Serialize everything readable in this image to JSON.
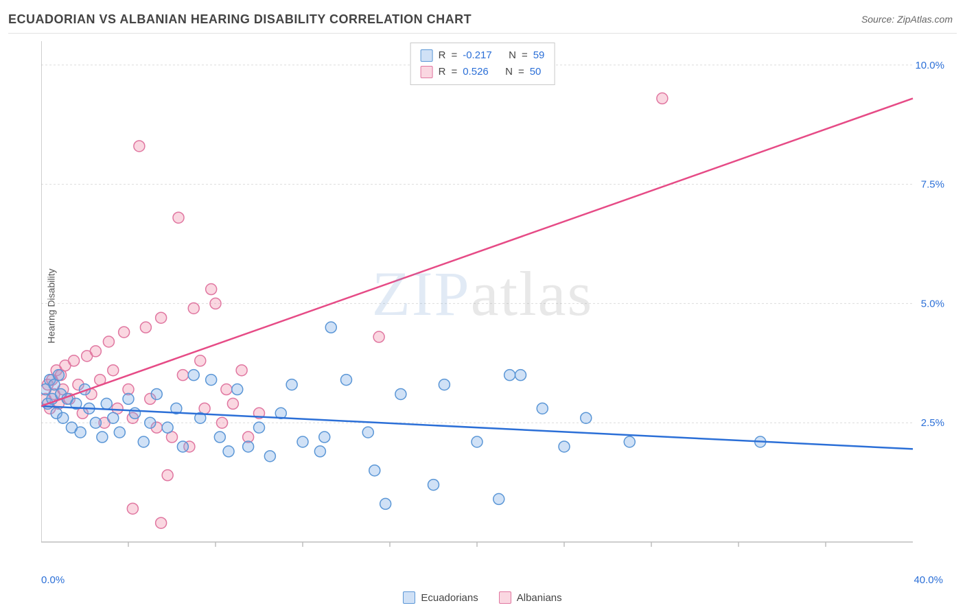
{
  "header": {
    "title": "ECUADORIAN VS ALBANIAN HEARING DISABILITY CORRELATION CHART",
    "source_prefix": "Source: ",
    "source_name": "ZipAtlas.com"
  },
  "ylabel": "Hearing Disability",
  "watermark": {
    "left": "ZIP",
    "right": "atlas"
  },
  "axis": {
    "xmin": 0.0,
    "xmax": 40.0,
    "ymin": 0.0,
    "ymax": 10.5,
    "xmin_label": "0.0%",
    "xmax_label": "40.0%",
    "yticks": [
      {
        "v": 2.5,
        "label": "2.5%"
      },
      {
        "v": 5.0,
        "label": "5.0%"
      },
      {
        "v": 7.5,
        "label": "7.5%"
      },
      {
        "v": 10.0,
        "label": "10.0%"
      }
    ],
    "xticks_minor": [
      4,
      8,
      12,
      16,
      20,
      24,
      28,
      32,
      36
    ]
  },
  "styling": {
    "background": "#ffffff",
    "grid_color": "#dcdcdc",
    "grid_dash": "3,3",
    "axis_line_color": "#bdbdbd",
    "tick_label_color": "#2b6fd7",
    "marker_radius": 8,
    "marker_stroke_width": 1.5,
    "trend_line_width": 2.5
  },
  "series": {
    "ecuadorians": {
      "label": "Ecuadorians",
      "fill": "rgba(120,170,230,0.35)",
      "stroke": "#5a96d6",
      "line_color": "#2b6fd7",
      "R": "-0.217",
      "N": "59",
      "trend": {
        "x0": 0,
        "y0": 2.85,
        "x1": 40,
        "y1": 1.95
      },
      "points": [
        [
          0.2,
          3.2
        ],
        [
          0.3,
          2.9
        ],
        [
          0.4,
          3.4
        ],
        [
          0.5,
          3.0
        ],
        [
          0.6,
          3.3
        ],
        [
          0.7,
          2.7
        ],
        [
          0.8,
          3.5
        ],
        [
          0.9,
          3.1
        ],
        [
          1.0,
          2.6
        ],
        [
          1.2,
          3.0
        ],
        [
          1.4,
          2.4
        ],
        [
          1.6,
          2.9
        ],
        [
          1.8,
          2.3
        ],
        [
          2.0,
          3.2
        ],
        [
          2.2,
          2.8
        ],
        [
          2.5,
          2.5
        ],
        [
          2.8,
          2.2
        ],
        [
          3.0,
          2.9
        ],
        [
          3.3,
          2.6
        ],
        [
          3.6,
          2.3
        ],
        [
          4.0,
          3.0
        ],
        [
          4.3,
          2.7
        ],
        [
          4.7,
          2.1
        ],
        [
          5.0,
          2.5
        ],
        [
          5.3,
          3.1
        ],
        [
          5.8,
          2.4
        ],
        [
          6.2,
          2.8
        ],
        [
          6.5,
          2.0
        ],
        [
          7.0,
          3.5
        ],
        [
          7.3,
          2.6
        ],
        [
          7.8,
          3.4
        ],
        [
          8.2,
          2.2
        ],
        [
          8.6,
          1.9
        ],
        [
          9.0,
          3.2
        ],
        [
          9.5,
          2.0
        ],
        [
          10.0,
          2.4
        ],
        [
          10.5,
          1.8
        ],
        [
          11.0,
          2.7
        ],
        [
          11.5,
          3.3
        ],
        [
          12.0,
          2.1
        ],
        [
          12.8,
          1.9
        ],
        [
          13.0,
          2.2
        ],
        [
          13.3,
          4.5
        ],
        [
          14.0,
          3.4
        ],
        [
          15.0,
          2.3
        ],
        [
          15.3,
          1.5
        ],
        [
          15.8,
          0.8
        ],
        [
          16.5,
          3.1
        ],
        [
          18.0,
          1.2
        ],
        [
          18.5,
          3.3
        ],
        [
          20.0,
          2.1
        ],
        [
          21.0,
          0.9
        ],
        [
          21.5,
          3.5
        ],
        [
          22.0,
          3.5
        ],
        [
          23.0,
          2.8
        ],
        [
          24.0,
          2.0
        ],
        [
          25.0,
          2.6
        ],
        [
          27.0,
          2.1
        ],
        [
          33.0,
          2.1
        ]
      ]
    },
    "albanians": {
      "label": "Albanians",
      "fill": "rgba(240,140,170,0.35)",
      "stroke": "#e076a0",
      "line_color": "#e64b86",
      "R": "0.526",
      "N": "50",
      "trend": {
        "x0": 0,
        "y0": 2.85,
        "x1": 40,
        "y1": 9.3
      },
      "points": [
        [
          0.2,
          3.0
        ],
        [
          0.3,
          3.3
        ],
        [
          0.4,
          2.8
        ],
        [
          0.5,
          3.4
        ],
        [
          0.6,
          3.1
        ],
        [
          0.7,
          3.6
        ],
        [
          0.8,
          2.9
        ],
        [
          0.9,
          3.5
        ],
        [
          1.0,
          3.2
        ],
        [
          1.1,
          3.7
        ],
        [
          1.3,
          3.0
        ],
        [
          1.5,
          3.8
        ],
        [
          1.7,
          3.3
        ],
        [
          1.9,
          2.7
        ],
        [
          2.1,
          3.9
        ],
        [
          2.3,
          3.1
        ],
        [
          2.5,
          4.0
        ],
        [
          2.7,
          3.4
        ],
        [
          2.9,
          2.5
        ],
        [
          3.1,
          4.2
        ],
        [
          3.3,
          3.6
        ],
        [
          3.5,
          2.8
        ],
        [
          3.8,
          4.4
        ],
        [
          4.0,
          3.2
        ],
        [
          4.2,
          2.6
        ],
        [
          4.5,
          8.3
        ],
        [
          4.8,
          4.5
        ],
        [
          5.0,
          3.0
        ],
        [
          5.3,
          2.4
        ],
        [
          5.5,
          4.7
        ],
        [
          5.8,
          1.4
        ],
        [
          6.0,
          2.2
        ],
        [
          6.3,
          6.8
        ],
        [
          6.5,
          3.5
        ],
        [
          6.8,
          2.0
        ],
        [
          7.0,
          4.9
        ],
        [
          7.3,
          3.8
        ],
        [
          7.5,
          2.8
        ],
        [
          7.8,
          5.3
        ],
        [
          8.0,
          5.0
        ],
        [
          8.3,
          2.5
        ],
        [
          8.5,
          3.2
        ],
        [
          8.8,
          2.9
        ],
        [
          9.2,
          3.6
        ],
        [
          9.5,
          2.2
        ],
        [
          10.0,
          2.7
        ],
        [
          4.2,
          0.7
        ],
        [
          5.5,
          0.4
        ],
        [
          15.5,
          4.3
        ],
        [
          28.5,
          9.3
        ]
      ]
    }
  },
  "top_legend": {
    "r_label": "R",
    "n_label": "N",
    "eq": "="
  },
  "bottom_legend": {
    "items": [
      "ecuadorians",
      "albanians"
    ]
  }
}
